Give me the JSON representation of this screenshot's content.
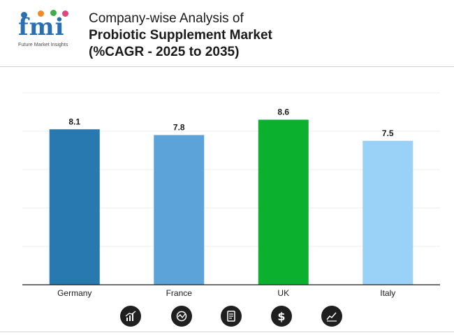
{
  "header": {
    "logo_text": "fmi",
    "logo_subtitle": "Future Market Insights",
    "title_line1": "Company-wise Analysis of",
    "title_line2": "Probiotic Supplement Market",
    "title_line3": "(%CAGR - 2025 to 2035)"
  },
  "chart_data": {
    "type": "bar",
    "title": "Company-wise Analysis of Probiotic Supplement Market (%CAGR - 2025 to 2035)",
    "categories": [
      "Germany",
      "France",
      "UK",
      "Italy"
    ],
    "values": [
      8.1,
      7.8,
      8.6,
      7.5
    ],
    "data_labels": [
      "8.1",
      "7.8",
      "8.6",
      "7.5"
    ],
    "colors": [
      "#2779b0",
      "#5ba3d9",
      "#0bb12e",
      "#99d1f7"
    ],
    "xlabel": "",
    "ylabel": "",
    "ylim": [
      0,
      10
    ],
    "grid": true
  },
  "footer_icons": [
    "bar-growth-icon",
    "analytics-gauge-icon",
    "report-document-icon",
    "dollar-icon",
    "trend-chart-icon"
  ]
}
